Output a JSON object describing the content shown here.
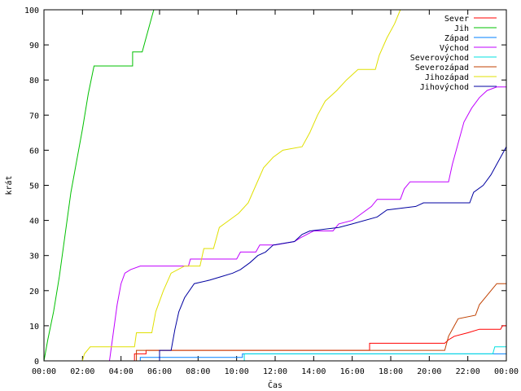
{
  "chart_data": {
    "type": "line",
    "xlabel": "Čas",
    "ylabel": "krát",
    "xlim": [
      0,
      24
    ],
    "ylim": [
      0,
      100
    ],
    "x_ticks": [
      {
        "v": 0,
        "label": "00:00"
      },
      {
        "v": 2,
        "label": "02:00"
      },
      {
        "v": 4,
        "label": "04:00"
      },
      {
        "v": 6,
        "label": "06:00"
      },
      {
        "v": 8,
        "label": "08:00"
      },
      {
        "v": 10,
        "label": "10:00"
      },
      {
        "v": 12,
        "label": "12:00"
      },
      {
        "v": 14,
        "label": "14:00"
      },
      {
        "v": 16,
        "label": "16:00"
      },
      {
        "v": 18,
        "label": "18:00"
      },
      {
        "v": 20,
        "label": "20:00"
      },
      {
        "v": 22,
        "label": "22:00"
      },
      {
        "v": 24,
        "label": "00:00"
      }
    ],
    "y_ticks": [
      0,
      10,
      20,
      30,
      40,
      50,
      60,
      70,
      80,
      90,
      100
    ],
    "grid": false,
    "legend_position": "top-right",
    "series": [
      {
        "name": "Sever",
        "color": "#ff0000",
        "points": [
          [
            4.7,
            0
          ],
          [
            4.7,
            2
          ],
          [
            5.3,
            2
          ],
          [
            5.3,
            3
          ],
          [
            16.9,
            3
          ],
          [
            16.9,
            5
          ],
          [
            20.8,
            5
          ],
          [
            21.0,
            6
          ],
          [
            21.3,
            7
          ],
          [
            22.0,
            8
          ],
          [
            22.6,
            9
          ],
          [
            23.7,
            9
          ],
          [
            23.8,
            10
          ],
          [
            24,
            10
          ]
        ]
      },
      {
        "name": "Jih",
        "color": "#00c000",
        "points": [
          [
            0,
            0
          ],
          [
            0.2,
            6
          ],
          [
            0.5,
            14
          ],
          [
            0.8,
            24
          ],
          [
            1.1,
            36
          ],
          [
            1.4,
            48
          ],
          [
            1.7,
            57
          ],
          [
            2.0,
            66
          ],
          [
            2.3,
            76
          ],
          [
            2.6,
            84
          ],
          [
            3.2,
            84
          ],
          [
            3.4,
            84
          ],
          [
            4.6,
            84
          ],
          [
            4.6,
            88
          ],
          [
            5.1,
            88
          ],
          [
            5.3,
            92
          ],
          [
            5.6,
            98
          ],
          [
            5.7,
            100
          ]
        ]
      },
      {
        "name": "Západ",
        "color": "#0080ff",
        "points": [
          [
            5.0,
            0
          ],
          [
            5.0,
            1
          ],
          [
            10.3,
            1
          ],
          [
            10.3,
            2
          ],
          [
            24,
            2
          ]
        ]
      },
      {
        "name": "Východ",
        "color": "#c000ff",
        "points": [
          [
            3.4,
            0
          ],
          [
            3.6,
            8
          ],
          [
            3.8,
            16
          ],
          [
            4.0,
            22
          ],
          [
            4.2,
            25
          ],
          [
            4.5,
            26
          ],
          [
            5.0,
            27
          ],
          [
            7.5,
            27
          ],
          [
            7.6,
            29
          ],
          [
            10.0,
            29
          ],
          [
            10.2,
            31
          ],
          [
            11.0,
            31
          ],
          [
            11.2,
            33
          ],
          [
            12.0,
            33
          ],
          [
            13.0,
            34
          ],
          [
            13.3,
            35
          ],
          [
            14.0,
            37
          ],
          [
            15.0,
            37
          ],
          [
            15.3,
            39
          ],
          [
            16.0,
            40
          ],
          [
            16.5,
            42
          ],
          [
            17.0,
            44
          ],
          [
            17.3,
            46
          ],
          [
            18.5,
            46
          ],
          [
            18.7,
            49
          ],
          [
            19.0,
            51
          ],
          [
            21.0,
            51
          ],
          [
            21.2,
            56
          ],
          [
            21.5,
            62
          ],
          [
            21.8,
            68
          ],
          [
            22.2,
            72
          ],
          [
            22.6,
            75
          ],
          [
            23.0,
            77
          ],
          [
            23.5,
            78
          ],
          [
            24,
            78
          ]
        ]
      },
      {
        "name": "Severovýchod",
        "color": "#00e0e0",
        "points": [
          [
            10.4,
            0
          ],
          [
            10.4,
            2
          ],
          [
            21.3,
            2
          ],
          [
            23.3,
            2
          ],
          [
            23.4,
            4
          ],
          [
            24,
            4
          ]
        ]
      },
      {
        "name": "Severozápad",
        "color": "#c04000",
        "points": [
          [
            4.8,
            0
          ],
          [
            4.8,
            3
          ],
          [
            20.8,
            3
          ],
          [
            21.0,
            7
          ],
          [
            21.2,
            9
          ],
          [
            21.5,
            12
          ],
          [
            22.4,
            13
          ],
          [
            22.6,
            16
          ],
          [
            22.9,
            18
          ],
          [
            23.2,
            20
          ],
          [
            23.5,
            22
          ],
          [
            24,
            22
          ]
        ]
      },
      {
        "name": "Jihozápad",
        "color": "#e0e000",
        "points": [
          [
            2.0,
            0
          ],
          [
            2.1,
            2
          ],
          [
            2.4,
            4
          ],
          [
            3.4,
            4
          ],
          [
            4.7,
            4
          ],
          [
            4.8,
            8
          ],
          [
            5.6,
            8
          ],
          [
            5.8,
            14
          ],
          [
            6.2,
            20
          ],
          [
            6.6,
            25
          ],
          [
            7.3,
            27
          ],
          [
            8.1,
            27
          ],
          [
            8.3,
            32
          ],
          [
            8.8,
            32
          ],
          [
            9.1,
            38
          ],
          [
            9.6,
            40
          ],
          [
            10.1,
            42
          ],
          [
            10.6,
            45
          ],
          [
            11.0,
            50
          ],
          [
            11.4,
            55
          ],
          [
            11.9,
            58
          ],
          [
            12.4,
            60
          ],
          [
            13.4,
            61
          ],
          [
            13.8,
            65
          ],
          [
            14.2,
            70
          ],
          [
            14.6,
            74
          ],
          [
            15.2,
            77
          ],
          [
            15.7,
            80
          ],
          [
            16.3,
            83
          ],
          [
            17.2,
            83
          ],
          [
            17.4,
            87
          ],
          [
            17.8,
            92
          ],
          [
            18.2,
            96
          ],
          [
            18.5,
            100
          ]
        ]
      },
      {
        "name": "Jihovýchod",
        "color": "#0000a0",
        "points": [
          [
            6.0,
            0
          ],
          [
            6.0,
            3
          ],
          [
            6.6,
            3
          ],
          [
            6.8,
            9
          ],
          [
            7.0,
            14
          ],
          [
            7.3,
            18
          ],
          [
            7.8,
            22
          ],
          [
            8.6,
            23
          ],
          [
            9.2,
            24
          ],
          [
            9.8,
            25
          ],
          [
            10.2,
            26
          ],
          [
            10.7,
            28
          ],
          [
            11.1,
            30
          ],
          [
            11.5,
            31
          ],
          [
            11.9,
            33
          ],
          [
            13.0,
            34
          ],
          [
            13.4,
            36
          ],
          [
            13.8,
            37
          ],
          [
            15.3,
            38
          ],
          [
            16.0,
            39
          ],
          [
            17.3,
            41
          ],
          [
            17.8,
            43
          ],
          [
            19.3,
            44
          ],
          [
            19.7,
            45
          ],
          [
            22.1,
            45
          ],
          [
            22.3,
            48
          ],
          [
            22.8,
            50
          ],
          [
            23.2,
            53
          ],
          [
            23.5,
            56
          ],
          [
            23.8,
            59
          ],
          [
            24,
            61
          ]
        ]
      }
    ]
  }
}
